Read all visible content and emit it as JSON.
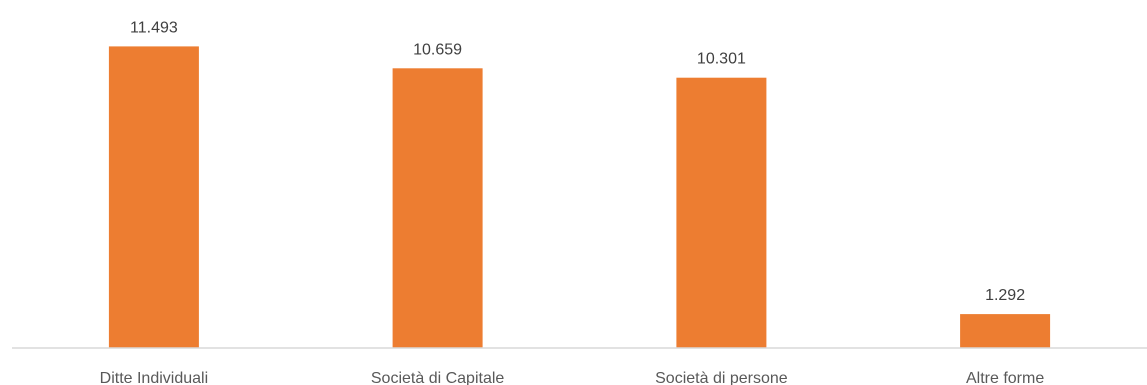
{
  "chart_data": {
    "type": "bar",
    "title": "",
    "xlabel": "",
    "ylabel": "",
    "categories": [
      "Ditte Individuali",
      "Società di Capitale",
      "Società di persone",
      "Altre forme"
    ],
    "values": [
      11493,
      10659,
      10301,
      1292
    ],
    "value_labels": [
      "11.493",
      "10.659",
      "10.301",
      "1.292"
    ],
    "ylim": [
      0,
      12500
    ],
    "grid": false,
    "legend": "none",
    "colors": {
      "bar": "#ED7D31",
      "axis": "#D9D9D9",
      "label": "#404040"
    }
  }
}
